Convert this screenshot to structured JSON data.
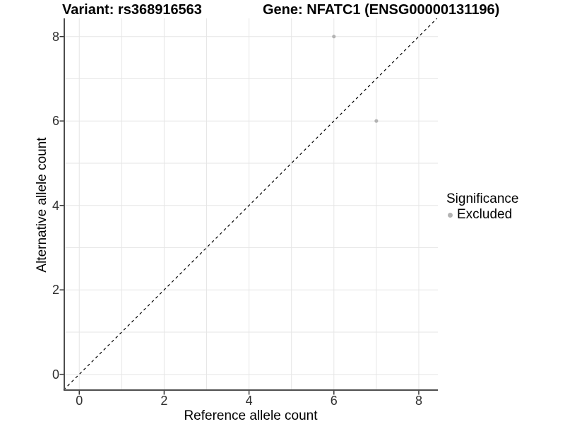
{
  "chart_data": {
    "type": "scatter",
    "title_left": "Variant: rs368916563",
    "title_right": "Gene: NFATC1 (ENSG00000131196)",
    "xlabel": "Reference allele count",
    "ylabel": "Alternative allele count",
    "xlim": [
      -0.37,
      8.45
    ],
    "ylim": [
      -0.39,
      8.43
    ],
    "x_ticks": {
      "values": [
        0,
        2,
        4,
        6,
        8
      ],
      "labels": [
        "0",
        "2",
        "4",
        "6",
        "8"
      ]
    },
    "y_ticks": {
      "values": [
        0,
        2,
        4,
        6,
        8
      ],
      "labels": [
        "0",
        "2",
        "4",
        "6",
        "8"
      ]
    },
    "grid": true,
    "grid_lines_at": [
      0,
      1,
      2,
      3,
      4,
      5,
      6,
      7,
      8
    ],
    "identity_line": {
      "equation": "y = x",
      "style": "dashed",
      "color": "#000000"
    },
    "points": [
      {
        "x": 6,
        "y": 8,
        "series": "Excluded"
      },
      {
        "x": 7,
        "y": 6,
        "series": "Excluded"
      }
    ],
    "legend": {
      "title": "Significance",
      "position": "right",
      "items": [
        {
          "label": "Excluded",
          "color": "#b3b3b3"
        }
      ]
    },
    "colors": {
      "point": "#b3b3b3",
      "grid": "#e6e6e6",
      "axis_line": "#4d4d4d",
      "tick_mark": "#333333",
      "tick_label": "#303030",
      "background": "#ffffff"
    }
  }
}
